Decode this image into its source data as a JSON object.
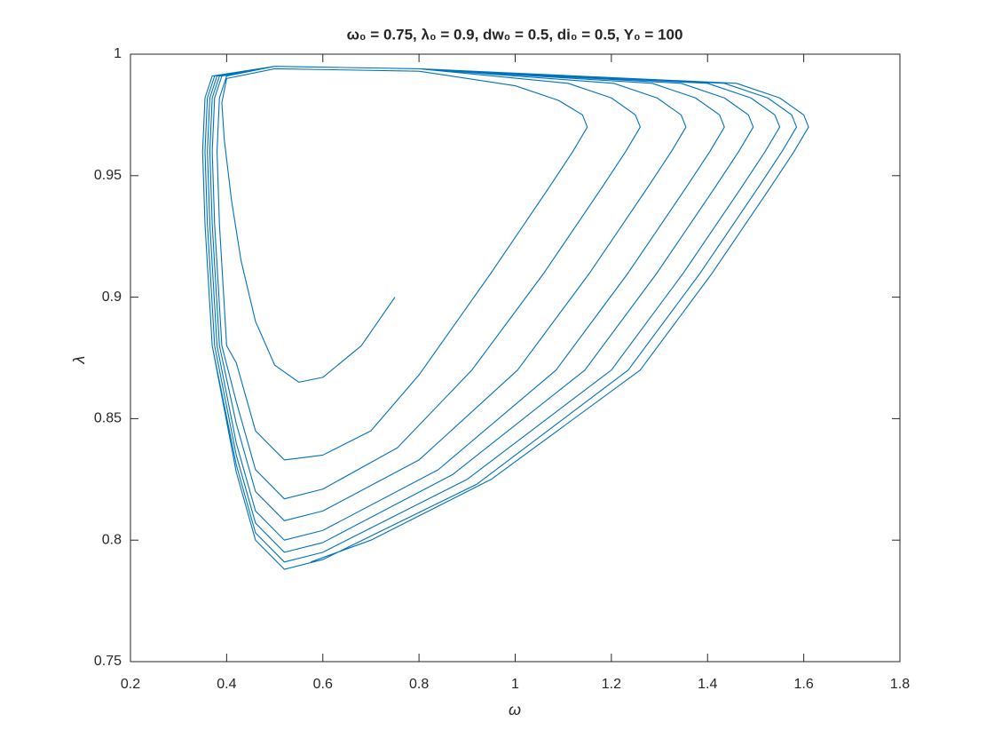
{
  "chart_data": {
    "type": "line",
    "title": "ω₀ = 0.75, λ₀ = 0.9, dw₀ = 0.5, di₀ = 0.5, Y₀ = 100",
    "x_label": "ω",
    "y_label": "λ",
    "color": "#0072bd",
    "xlim": [
      0.2,
      1.8
    ],
    "xticks": [
      0.2,
      0.4,
      0.6,
      0.8,
      1,
      1.2,
      1.4,
      1.6,
      1.8
    ],
    "ylim": [
      0.75,
      1
    ],
    "yticks": [
      0.75,
      0.8,
      0.85,
      0.9,
      0.95,
      1
    ],
    "x": [
      0.75,
      0.68,
      0.6,
      0.55,
      0.5,
      0.46,
      0.43,
      0.41,
      0.395,
      0.39,
      0.4,
      0.5,
      0.8,
      1.0,
      1.09,
      1.14,
      1.15,
      1.12,
      1.07,
      0.95,
      0.8,
      0.7,
      0.6,
      0.52,
      0.46,
      0.42,
      0.4,
      0.385,
      0.38,
      0.385,
      0.4,
      0.5,
      0.8,
      1.11,
      1.2,
      1.25,
      1.26,
      1.23,
      1.18,
      1.06,
      0.91,
      0.755,
      0.6,
      0.52,
      0.46,
      0.42,
      0.39,
      0.375,
      0.37,
      0.375,
      0.39,
      0.5,
      0.8,
      1.205,
      1.295,
      1.345,
      1.355,
      1.325,
      1.275,
      1.155,
      1.005,
      0.8,
      0.6,
      0.52,
      0.46,
      0.42,
      0.385,
      0.37,
      0.365,
      0.37,
      0.385,
      0.5,
      0.8,
      1.285,
      1.375,
      1.425,
      1.435,
      1.405,
      1.355,
      1.235,
      1.085,
      0.84,
      0.6,
      0.52,
      0.46,
      0.42,
      0.38,
      0.365,
      0.36,
      0.365,
      0.38,
      0.5,
      0.8,
      1.345,
      1.435,
      1.485,
      1.495,
      1.465,
      1.415,
      1.295,
      1.145,
      0.87,
      0.6,
      0.52,
      0.46,
      0.42,
      0.375,
      0.36,
      0.355,
      0.36,
      0.375,
      0.5,
      0.8,
      1.4,
      1.49,
      1.54,
      1.55,
      1.52,
      1.47,
      1.35,
      1.2,
      0.9,
      0.6,
      0.52,
      0.46,
      0.42,
      0.37,
      0.355,
      0.35,
      0.355,
      0.37,
      0.5,
      0.8,
      1.435,
      1.525,
      1.575,
      1.585,
      1.555,
      1.505,
      1.385,
      1.235,
      0.92,
      0.6,
      0.52,
      0.46,
      0.42,
      0.37,
      0.355,
      0.35,
      0.355,
      0.37,
      0.5,
      0.8,
      1.46,
      1.55,
      1.6,
      1.61,
      1.58,
      1.53,
      1.41,
      1.26,
      0.95,
      0.7,
      0.575
    ],
    "values": [
      0.9,
      0.88,
      0.867,
      0.865,
      0.872,
      0.89,
      0.915,
      0.94,
      0.965,
      0.98,
      0.99,
      0.994,
      0.993,
      0.987,
      0.981,
      0.975,
      0.97,
      0.96,
      0.945,
      0.91,
      0.868,
      0.845,
      0.835,
      0.833,
      0.845,
      0.873,
      0.88,
      0.93,
      0.96,
      0.982,
      0.991,
      0.995,
      0.994,
      0.988,
      0.982,
      0.975,
      0.97,
      0.96,
      0.945,
      0.91,
      0.87,
      0.838,
      0.821,
      0.817,
      0.829,
      0.857,
      0.88,
      0.93,
      0.96,
      0.982,
      0.991,
      0.995,
      0.994,
      0.988,
      0.982,
      0.975,
      0.97,
      0.96,
      0.945,
      0.91,
      0.87,
      0.833,
      0.812,
      0.808,
      0.82,
      0.848,
      0.88,
      0.93,
      0.96,
      0.982,
      0.991,
      0.995,
      0.994,
      0.988,
      0.982,
      0.975,
      0.97,
      0.96,
      0.945,
      0.91,
      0.87,
      0.829,
      0.804,
      0.8,
      0.812,
      0.84,
      0.88,
      0.93,
      0.96,
      0.982,
      0.991,
      0.995,
      0.994,
      0.988,
      0.982,
      0.975,
      0.97,
      0.96,
      0.945,
      0.91,
      0.87,
      0.827,
      0.799,
      0.795,
      0.807,
      0.835,
      0.88,
      0.93,
      0.96,
      0.982,
      0.991,
      0.995,
      0.994,
      0.988,
      0.982,
      0.975,
      0.97,
      0.96,
      0.945,
      0.91,
      0.87,
      0.825,
      0.795,
      0.791,
      0.803,
      0.831,
      0.88,
      0.93,
      0.96,
      0.982,
      0.991,
      0.995,
      0.994,
      0.988,
      0.982,
      0.975,
      0.97,
      0.96,
      0.945,
      0.91,
      0.87,
      0.823,
      0.792,
      0.788,
      0.8,
      0.828,
      0.88,
      0.93,
      0.96,
      0.982,
      0.991,
      0.995,
      0.994,
      0.988,
      0.982,
      0.975,
      0.97,
      0.96,
      0.945,
      0.91,
      0.87,
      0.825,
      0.8,
      0.791
    ]
  }
}
